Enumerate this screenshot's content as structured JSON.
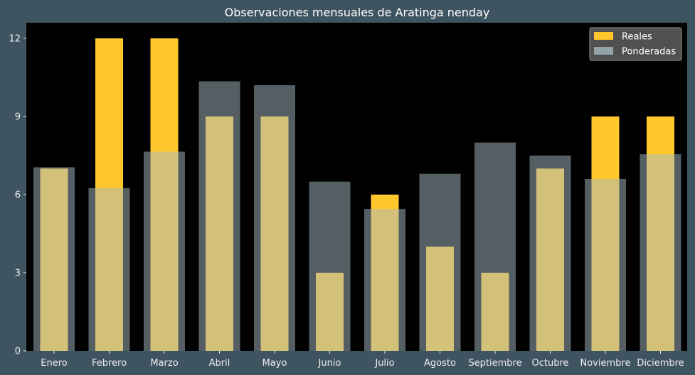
{
  "chart_data": {
    "type": "bar",
    "title": "Observaciones mensuales de Aratinga nenday",
    "xlabel": "",
    "ylabel": "",
    "categories": [
      "Enero",
      "Febrero",
      "Marzo",
      "Abril",
      "Mayo",
      "Junio",
      "Julio",
      "Agosto",
      "Septiembre",
      "Octubre",
      "Noviembre",
      "Diciembre"
    ],
    "series": [
      {
        "name": "Reales",
        "values": [
          7,
          12,
          12,
          9,
          9,
          3,
          6,
          4,
          3,
          7,
          9,
          9
        ]
      },
      {
        "name": "Ponderadas",
        "values": [
          7.05,
          6.25,
          7.65,
          10.35,
          10.2,
          6.5,
          5.45,
          6.8,
          8.0,
          7.5,
          6.6,
          7.55
        ]
      }
    ],
    "ylim": [
      0,
      12.6
    ],
    "yticks": [
      0,
      3,
      6,
      9,
      12
    ],
    "grid": false,
    "legend_position": "top-right",
    "colors": {
      "figure_background": "#3f5461",
      "plot_background": "#000000",
      "reales": "#ffc72c",
      "ponderadas": "#a9bcc5",
      "overlap": "#d6d18a",
      "text": "#eeeeee",
      "legend_background": "#595959",
      "legend_border": "#9a9a9a"
    }
  }
}
